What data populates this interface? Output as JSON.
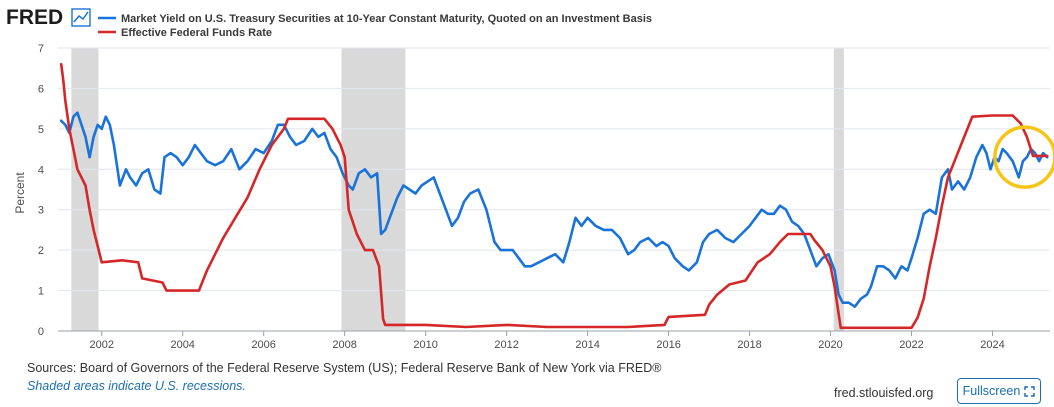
{
  "header": {
    "logo_text": "FRED",
    "logo_icon": "trend-line-icon"
  },
  "colors": {
    "series_10y": "#1a73d8",
    "series_effr": "#d62728",
    "recession_fill": "#d9d9d9",
    "highlight_circle": "#f5c518",
    "grid": "#e1e6ee"
  },
  "chart_data": {
    "type": "line",
    "title": "",
    "xlabel": "",
    "ylabel": "Percent",
    "xlim": [
      2000.92,
      2025.42
    ],
    "ylim": [
      0,
      7
    ],
    "y_ticks": [
      0,
      1,
      2,
      3,
      4,
      5,
      6,
      7
    ],
    "x_ticks": [
      2002,
      2004,
      2006,
      2008,
      2010,
      2012,
      2014,
      2016,
      2018,
      2020,
      2022,
      2024
    ],
    "recessions": [
      [
        2001.25,
        2001.92
      ],
      [
        2007.92,
        2009.5
      ],
      [
        2020.08,
        2020.33
      ]
    ],
    "annotation": {
      "type": "circle",
      "center": [
        2024.8,
        4.3
      ]
    },
    "series": [
      {
        "name": "Market Yield on U.S. Treasury Securities at 10-Year Constant Maturity, Quoted on an Investment Basis",
        "x": [
          2001.0,
          2001.1,
          2001.2,
          2001.3,
          2001.4,
          2001.5,
          2001.6,
          2001.7,
          2001.8,
          2001.9,
          2002.0,
          2002.1,
          2002.2,
          2002.3,
          2002.45,
          2002.6,
          2002.7,
          2002.85,
          2003.0,
          2003.15,
          2003.3,
          2003.45,
          2003.55,
          2003.7,
          2003.85,
          2004.0,
          2004.15,
          2004.3,
          2004.45,
          2004.6,
          2004.8,
          2005.0,
          2005.2,
          2005.4,
          2005.6,
          2005.8,
          2006.0,
          2006.2,
          2006.35,
          2006.5,
          2006.65,
          2006.8,
          2007.0,
          2007.2,
          2007.35,
          2007.5,
          2007.65,
          2007.8,
          2007.95,
          2008.1,
          2008.2,
          2008.35,
          2008.5,
          2008.65,
          2008.8,
          2008.9,
          2009.0,
          2009.15,
          2009.3,
          2009.45,
          2009.6,
          2009.75,
          2009.9,
          2010.05,
          2010.2,
          2010.35,
          2010.5,
          2010.65,
          2010.8,
          2010.95,
          2011.1,
          2011.3,
          2011.5,
          2011.7,
          2011.85,
          2012.0,
          2012.15,
          2012.3,
          2012.45,
          2012.6,
          2012.8,
          2013.0,
          2013.2,
          2013.4,
          2013.55,
          2013.7,
          2013.85,
          2014.0,
          2014.2,
          2014.4,
          2014.6,
          2014.8,
          2015.0,
          2015.15,
          2015.3,
          2015.5,
          2015.7,
          2015.85,
          2016.0,
          2016.15,
          2016.35,
          2016.5,
          2016.7,
          2016.85,
          2017.0,
          2017.2,
          2017.4,
          2017.6,
          2017.8,
          2018.0,
          2018.15,
          2018.3,
          2018.45,
          2018.6,
          2018.75,
          2018.9,
          2019.05,
          2019.2,
          2019.35,
          2019.5,
          2019.65,
          2019.8,
          2019.95,
          2020.1,
          2020.2,
          2020.3,
          2020.45,
          2020.6,
          2020.75,
          2020.9,
          2021.0,
          2021.15,
          2021.3,
          2021.45,
          2021.6,
          2021.75,
          2021.9,
          2022.0,
          2022.15,
          2022.3,
          2022.45,
          2022.6,
          2022.75,
          2022.9,
          2023.0,
          2023.15,
          2023.3,
          2023.45,
          2023.6,
          2023.75,
          2023.85,
          2023.95,
          2024.05,
          2024.15,
          2024.25,
          2024.35,
          2024.5,
          2024.65,
          2024.75,
          2024.85,
          2024.95,
          2025.05,
          2025.15,
          2025.25,
          2025.35
        ],
        "values": [
          5.2,
          5.1,
          4.9,
          5.3,
          5.4,
          5.1,
          4.8,
          4.3,
          4.8,
          5.1,
          5.0,
          5.3,
          5.1,
          4.6,
          3.6,
          4.0,
          3.8,
          3.6,
          3.9,
          4.0,
          3.5,
          3.4,
          4.3,
          4.4,
          4.3,
          4.1,
          4.3,
          4.6,
          4.4,
          4.2,
          4.1,
          4.2,
          4.5,
          4.0,
          4.2,
          4.5,
          4.4,
          4.7,
          5.1,
          5.1,
          4.8,
          4.6,
          4.7,
          5.0,
          4.8,
          4.9,
          4.5,
          4.3,
          3.9,
          3.6,
          3.5,
          3.9,
          4.0,
          3.8,
          3.9,
          2.4,
          2.5,
          2.9,
          3.3,
          3.6,
          3.5,
          3.4,
          3.6,
          3.7,
          3.8,
          3.4,
          3.0,
          2.6,
          2.8,
          3.2,
          3.4,
          3.5,
          3.0,
          2.2,
          2.0,
          2.0,
          2.0,
          1.8,
          1.6,
          1.6,
          1.7,
          1.8,
          1.9,
          1.7,
          2.2,
          2.8,
          2.6,
          2.8,
          2.6,
          2.5,
          2.5,
          2.3,
          1.9,
          2.0,
          2.2,
          2.3,
          2.1,
          2.2,
          2.1,
          1.8,
          1.6,
          1.5,
          1.7,
          2.2,
          2.4,
          2.5,
          2.3,
          2.2,
          2.4,
          2.6,
          2.8,
          3.0,
          2.9,
          2.9,
          3.1,
          3.0,
          2.7,
          2.6,
          2.4,
          2.0,
          1.6,
          1.8,
          1.9,
          1.5,
          0.9,
          0.7,
          0.7,
          0.6,
          0.8,
          0.9,
          1.1,
          1.6,
          1.6,
          1.5,
          1.3,
          1.6,
          1.5,
          1.8,
          2.3,
          2.9,
          3.0,
          2.9,
          3.8,
          4.0,
          3.5,
          3.7,
          3.5,
          3.8,
          4.3,
          4.6,
          4.4,
          4.0,
          4.3,
          4.2,
          4.5,
          4.4,
          4.2,
          3.8,
          4.2,
          4.3,
          4.5,
          4.4,
          4.2,
          4.4,
          4.3
        ],
        "color": "#1a73d8"
      },
      {
        "name": "Effective Federal Funds Rate",
        "x": [
          2001.0,
          2001.05,
          2001.1,
          2001.2,
          2001.3,
          2001.4,
          2001.5,
          2001.6,
          2001.7,
          2001.8,
          2001.9,
          2002.0,
          2002.5,
          2002.9,
          2003.0,
          2003.5,
          2003.6,
          2004.0,
          2004.4,
          2004.6,
          2004.8,
          2005.0,
          2005.3,
          2005.6,
          2005.9,
          2006.2,
          2006.5,
          2006.6,
          2007.0,
          2007.5,
          2007.7,
          2007.9,
          2008.0,
          2008.1,
          2008.3,
          2008.5,
          2008.7,
          2008.85,
          2008.95,
          2009.0,
          2009.5,
          2010.0,
          2011.0,
          2012.0,
          2013.0,
          2014.0,
          2015.0,
          2015.9,
          2016.0,
          2016.9,
          2017.0,
          2017.2,
          2017.5,
          2017.9,
          2018.0,
          2018.2,
          2018.5,
          2018.75,
          2018.95,
          2019.5,
          2019.6,
          2019.8,
          2020.0,
          2020.1,
          2020.25,
          2021.0,
          2022.0,
          2022.15,
          2022.3,
          2022.45,
          2022.6,
          2022.75,
          2022.9,
          2023.1,
          2023.3,
          2023.5,
          2024.0,
          2024.5,
          2024.7,
          2024.85,
          2025.0,
          2025.35
        ],
        "values": [
          6.6,
          6.2,
          5.7,
          5.0,
          4.5,
          4.0,
          3.8,
          3.6,
          3.0,
          2.5,
          2.1,
          1.7,
          1.75,
          1.7,
          1.3,
          1.2,
          1.0,
          1.0,
          1.0,
          1.5,
          1.9,
          2.3,
          2.8,
          3.3,
          4.0,
          4.6,
          5.0,
          5.25,
          5.25,
          5.25,
          5.0,
          4.6,
          4.3,
          3.0,
          2.4,
          2.0,
          2.0,
          1.6,
          0.3,
          0.15,
          0.15,
          0.15,
          0.1,
          0.15,
          0.1,
          0.1,
          0.1,
          0.15,
          0.35,
          0.4,
          0.65,
          0.9,
          1.15,
          1.25,
          1.4,
          1.7,
          1.9,
          2.2,
          2.4,
          2.4,
          2.25,
          2.0,
          1.6,
          1.1,
          0.08,
          0.08,
          0.08,
          0.33,
          0.8,
          1.6,
          2.3,
          3.1,
          3.8,
          4.3,
          4.8,
          5.3,
          5.33,
          5.33,
          5.13,
          4.8,
          4.33,
          4.33
        ],
        "color": "#d62728"
      }
    ]
  },
  "footer": {
    "source": "Sources: Board of Governors of the Federal Reserve System (US); Federal Reserve Bank of New York via FRED®",
    "note": "Shaded areas indicate U.S. recessions.",
    "domain": "fred.stlouisfed.org",
    "fullscreen_label": "Fullscreen",
    "fullscreen_icon": "expand-icon"
  }
}
